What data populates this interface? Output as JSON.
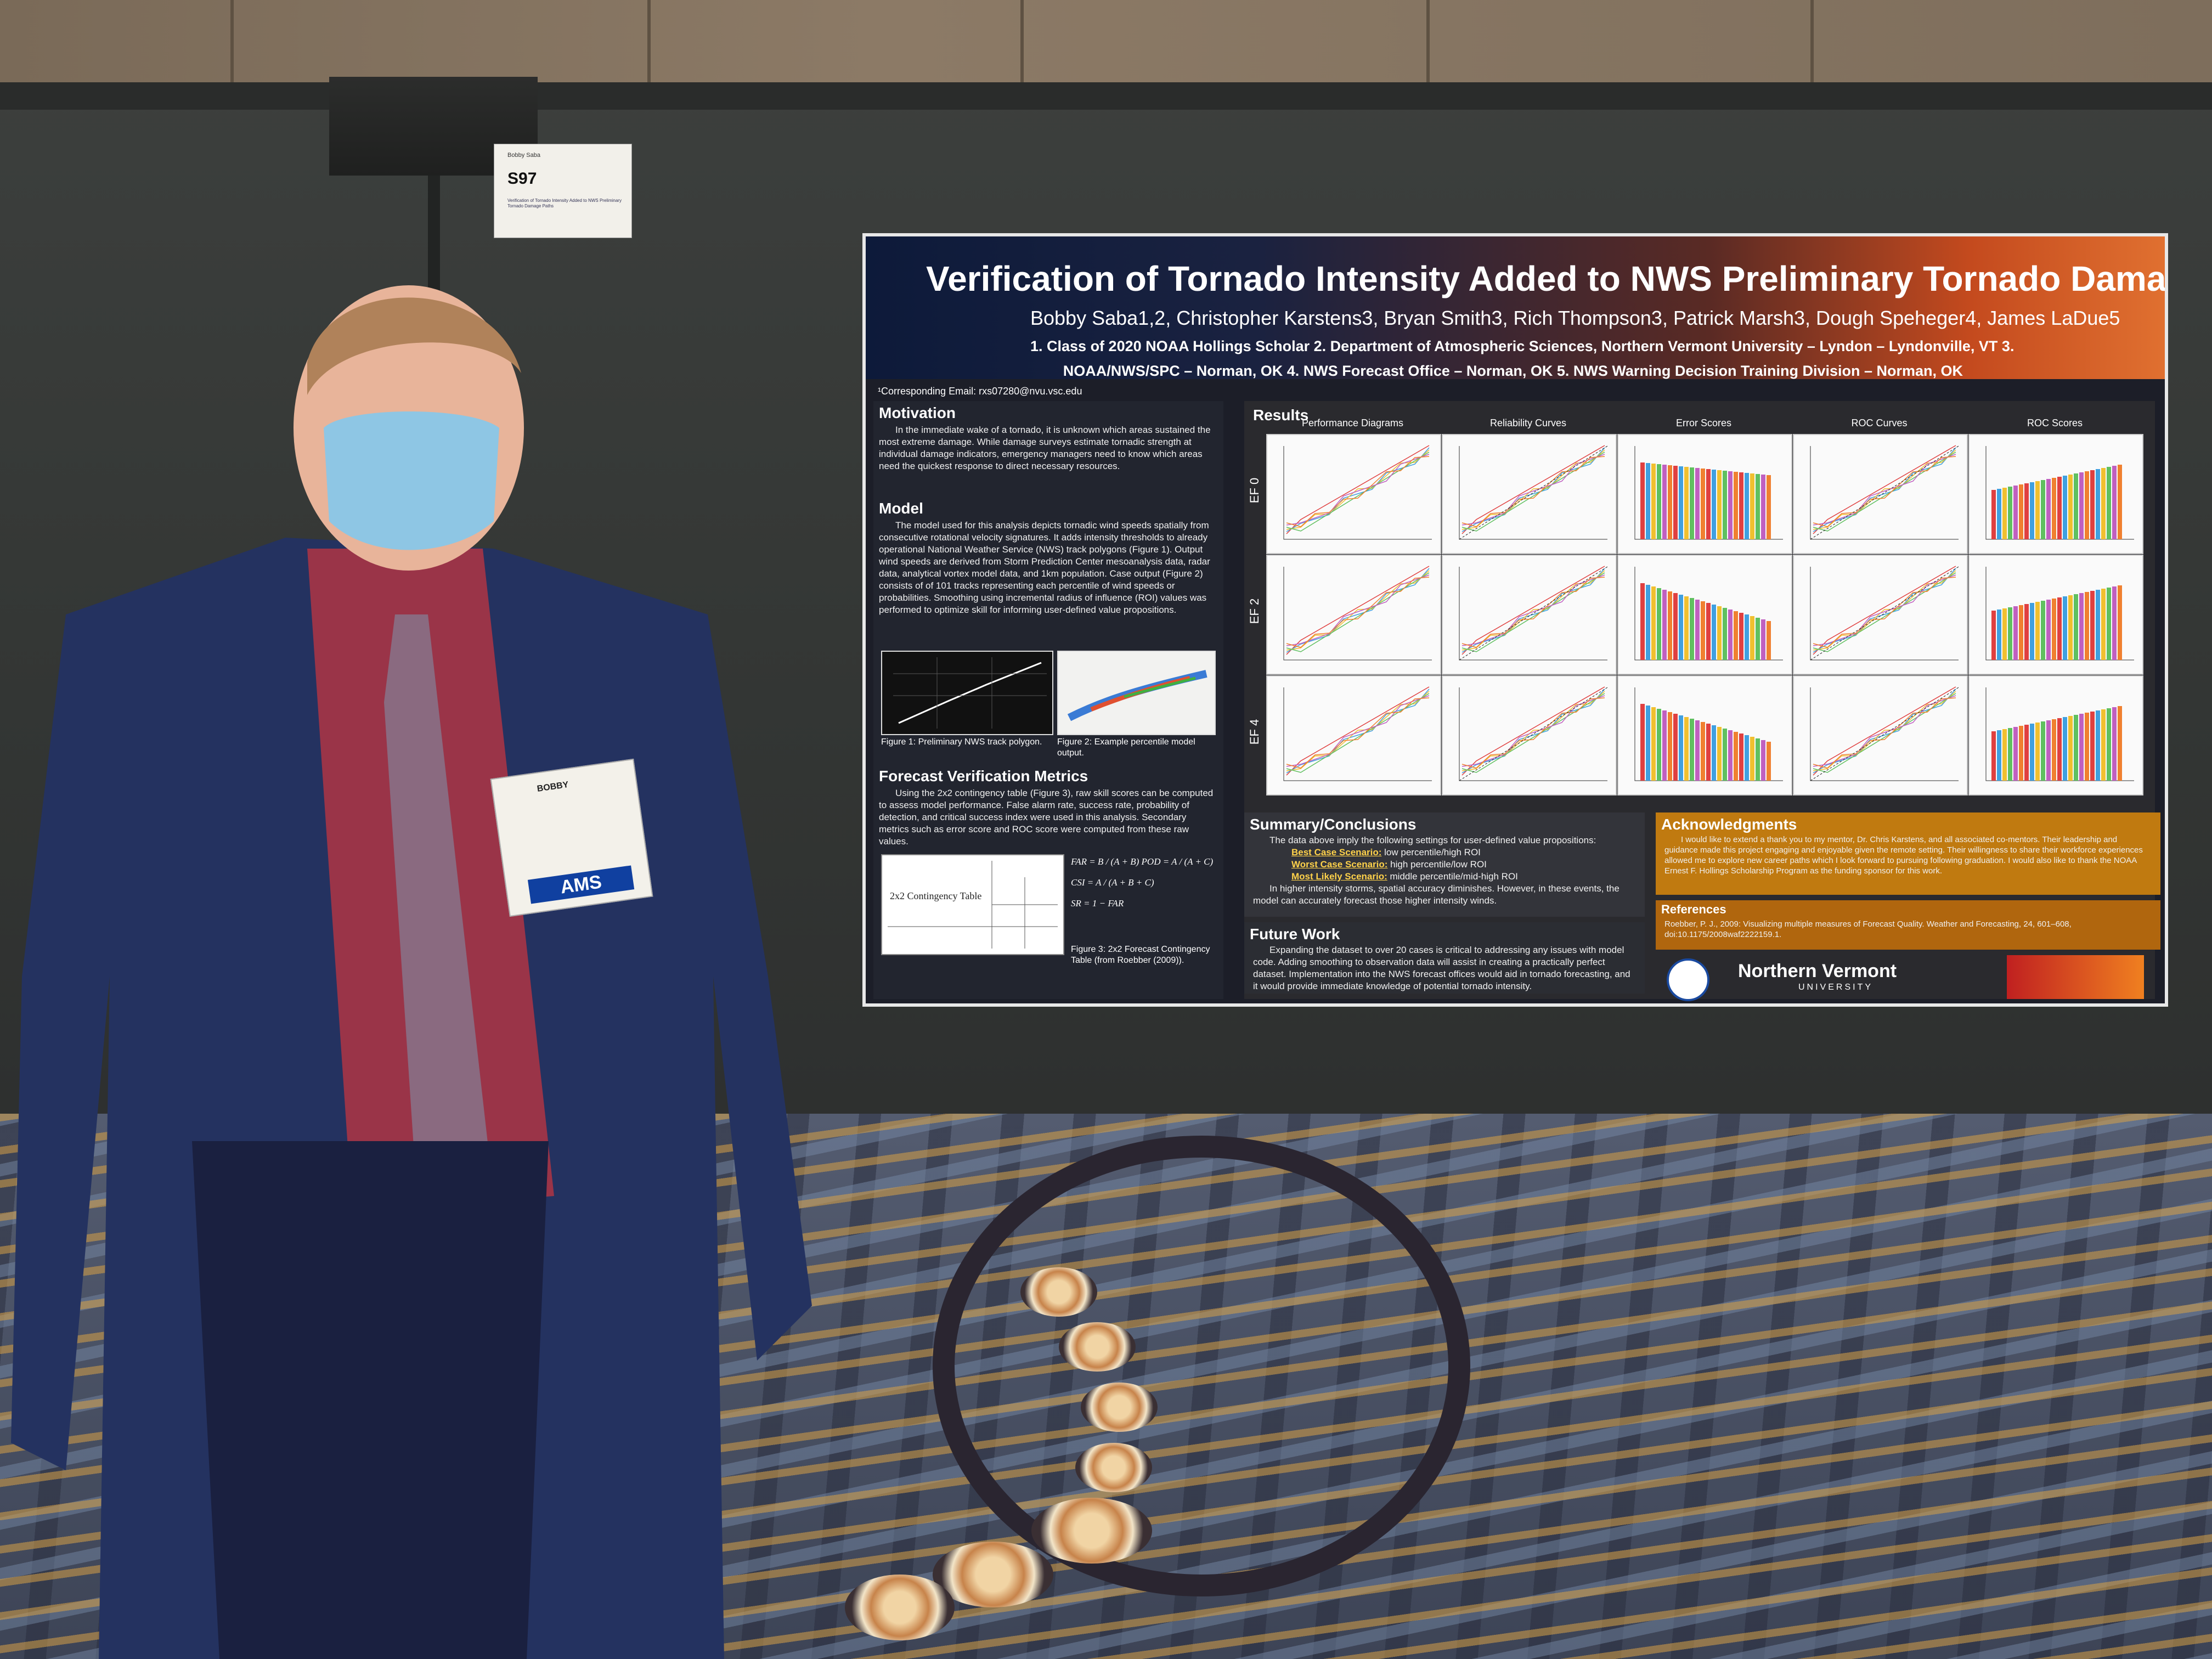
{
  "sign": {
    "name": "Bobby Saba",
    "code": "S97",
    "desc": "Verification of Tornado Intensity Added to NWS Preliminary Tornado Damage Paths"
  },
  "poster": {
    "title": "Verification of Tornado Intensity Added to NWS Preliminary Tornado Damage Paths",
    "authors": "Bobby Saba1,2, Christopher Karstens3, Bryan Smith3, Rich Thompson3, Patrick Marsh3, Dough Speheger4, James LaDue5",
    "aff1": "1. Class of 2020 NOAA Hollings Scholar 2. Department of Atmospheric Sciences, Northern Vermont University – Lyndon – Lyndonville, VT 3.",
    "aff2": "NOAA/NWS/SPC – Norman, OK 4. NWS Forecast Office – Norman, OK 5. NWS Warning Decision Training Division – Norman, OK",
    "email": "¹Corresponding Email: rxs07280@nvu.vsc.edu",
    "motivation": {
      "title": "Motivation",
      "text": "In the immediate wake of a tornado, it is unknown which areas sustained the most extreme damage. While damage surveys estimate tornadic strength at individual damage indicators, emergency managers need to know which areas need the quickest response to direct necessary resources."
    },
    "model": {
      "title": "Model",
      "text": "The model used for this analysis depicts tornadic wind speeds spatially from consecutive rotational velocity signatures. It adds intensity thresholds to already operational National Weather Service (NWS) track polygons (Figure 1). Output wind speeds are derived from Storm Prediction Center mesoanalysis data, radar data, analytical vortex model data, and 1km population. Case output (Figure 2) consists of of 101 tracks representing each percentile of wind speeds or probabilities. Smoothing using incremental radius of influence (ROI) values was performed to optimize skill for informing user-defined value propositions.",
      "fig1": "Figure 1: Preliminary NWS track polygon.",
      "fig2": "Figure 2: Example percentile model output."
    },
    "metrics": {
      "title": "Forecast Verification Metrics",
      "text": "Using the 2x2 contingency table (Figure 3), raw skill scores can be computed to assess model performance. False alarm rate, success rate, probability of detection, and critical success index were used in this analysis. Secondary metrics such as error score and ROC score were computed from these raw values.",
      "table_label": "2x2 Contingency Table",
      "fig3": "Figure 3: 2x2 Forecast Contingency Table (from Roebber (2009)).",
      "f1": "FAR = B / (A + B)     POD = A / (A + C)",
      "f2": "CSI = A / (A + B + C)",
      "f3": "SR = 1 − FAR"
    },
    "results": {
      "title": "Results",
      "columns": [
        "Performance Diagrams",
        "Reliability Curves",
        "Error Scores",
        "ROC Curves",
        "ROC Scores"
      ],
      "rows": [
        "EF 0",
        "EF 2",
        "EF 4"
      ]
    },
    "summary": {
      "title": "Summary/Conclusions",
      "intro": "The data above imply the following settings for user-defined value propositions:",
      "best_label": "Best Case Scenario:",
      "best": "low percentile/high ROI",
      "worst_label": "Worst Case Scenario:",
      "worst": "high percentile/low ROI",
      "likely_label": "Most Likely Scenario:",
      "likely": "middle percentile/mid-high ROI",
      "outro": "In higher intensity storms, spatial accuracy diminishes. However, in these events, the model can accurately forecast those higher intensity winds."
    },
    "future": {
      "title": "Future Work",
      "text": "Expanding the dataset to over 20 cases is critical to addressing any issues with model code. Adding smoothing to observation data will assist in creating a practically perfect dataset. Implementation into the NWS forecast offices would aid in tornado forecasting, and it would provide immediate knowledge of potential tornado intensity."
    },
    "ack": {
      "title": "Acknowledgments",
      "text": "I would like to extend a thank you to my mentor, Dr. Chris Karstens, and all associated co-mentors. Their leadership and guidance made this project engaging and enjoyable given the remote setting. Their willingness to share their workforce experiences allowed me to explore new career paths which I look forward to pursuing following graduation. I would also like to thank the NOAA Ernest F. Hollings Scholarship Program as the funding sponsor for this work."
    },
    "refs": {
      "title": "References",
      "text": "Roebber, P. J., 2009: Visualizing multiple measures of Forecast Quality. Weather and Forecasting, 24, 601–608, doi:10.1175/2008waf2222159.1."
    },
    "logos": {
      "nvu": "Northern Vermont",
      "nvu_sub": "UNIVERSITY"
    }
  },
  "badge": {
    "name": "BOBBY",
    "org": "AMS"
  },
  "colors": {
    "poster_orange": "#e07030",
    "poster_navy": "#0d1a3a",
    "badge_blue": "#1040a0"
  }
}
